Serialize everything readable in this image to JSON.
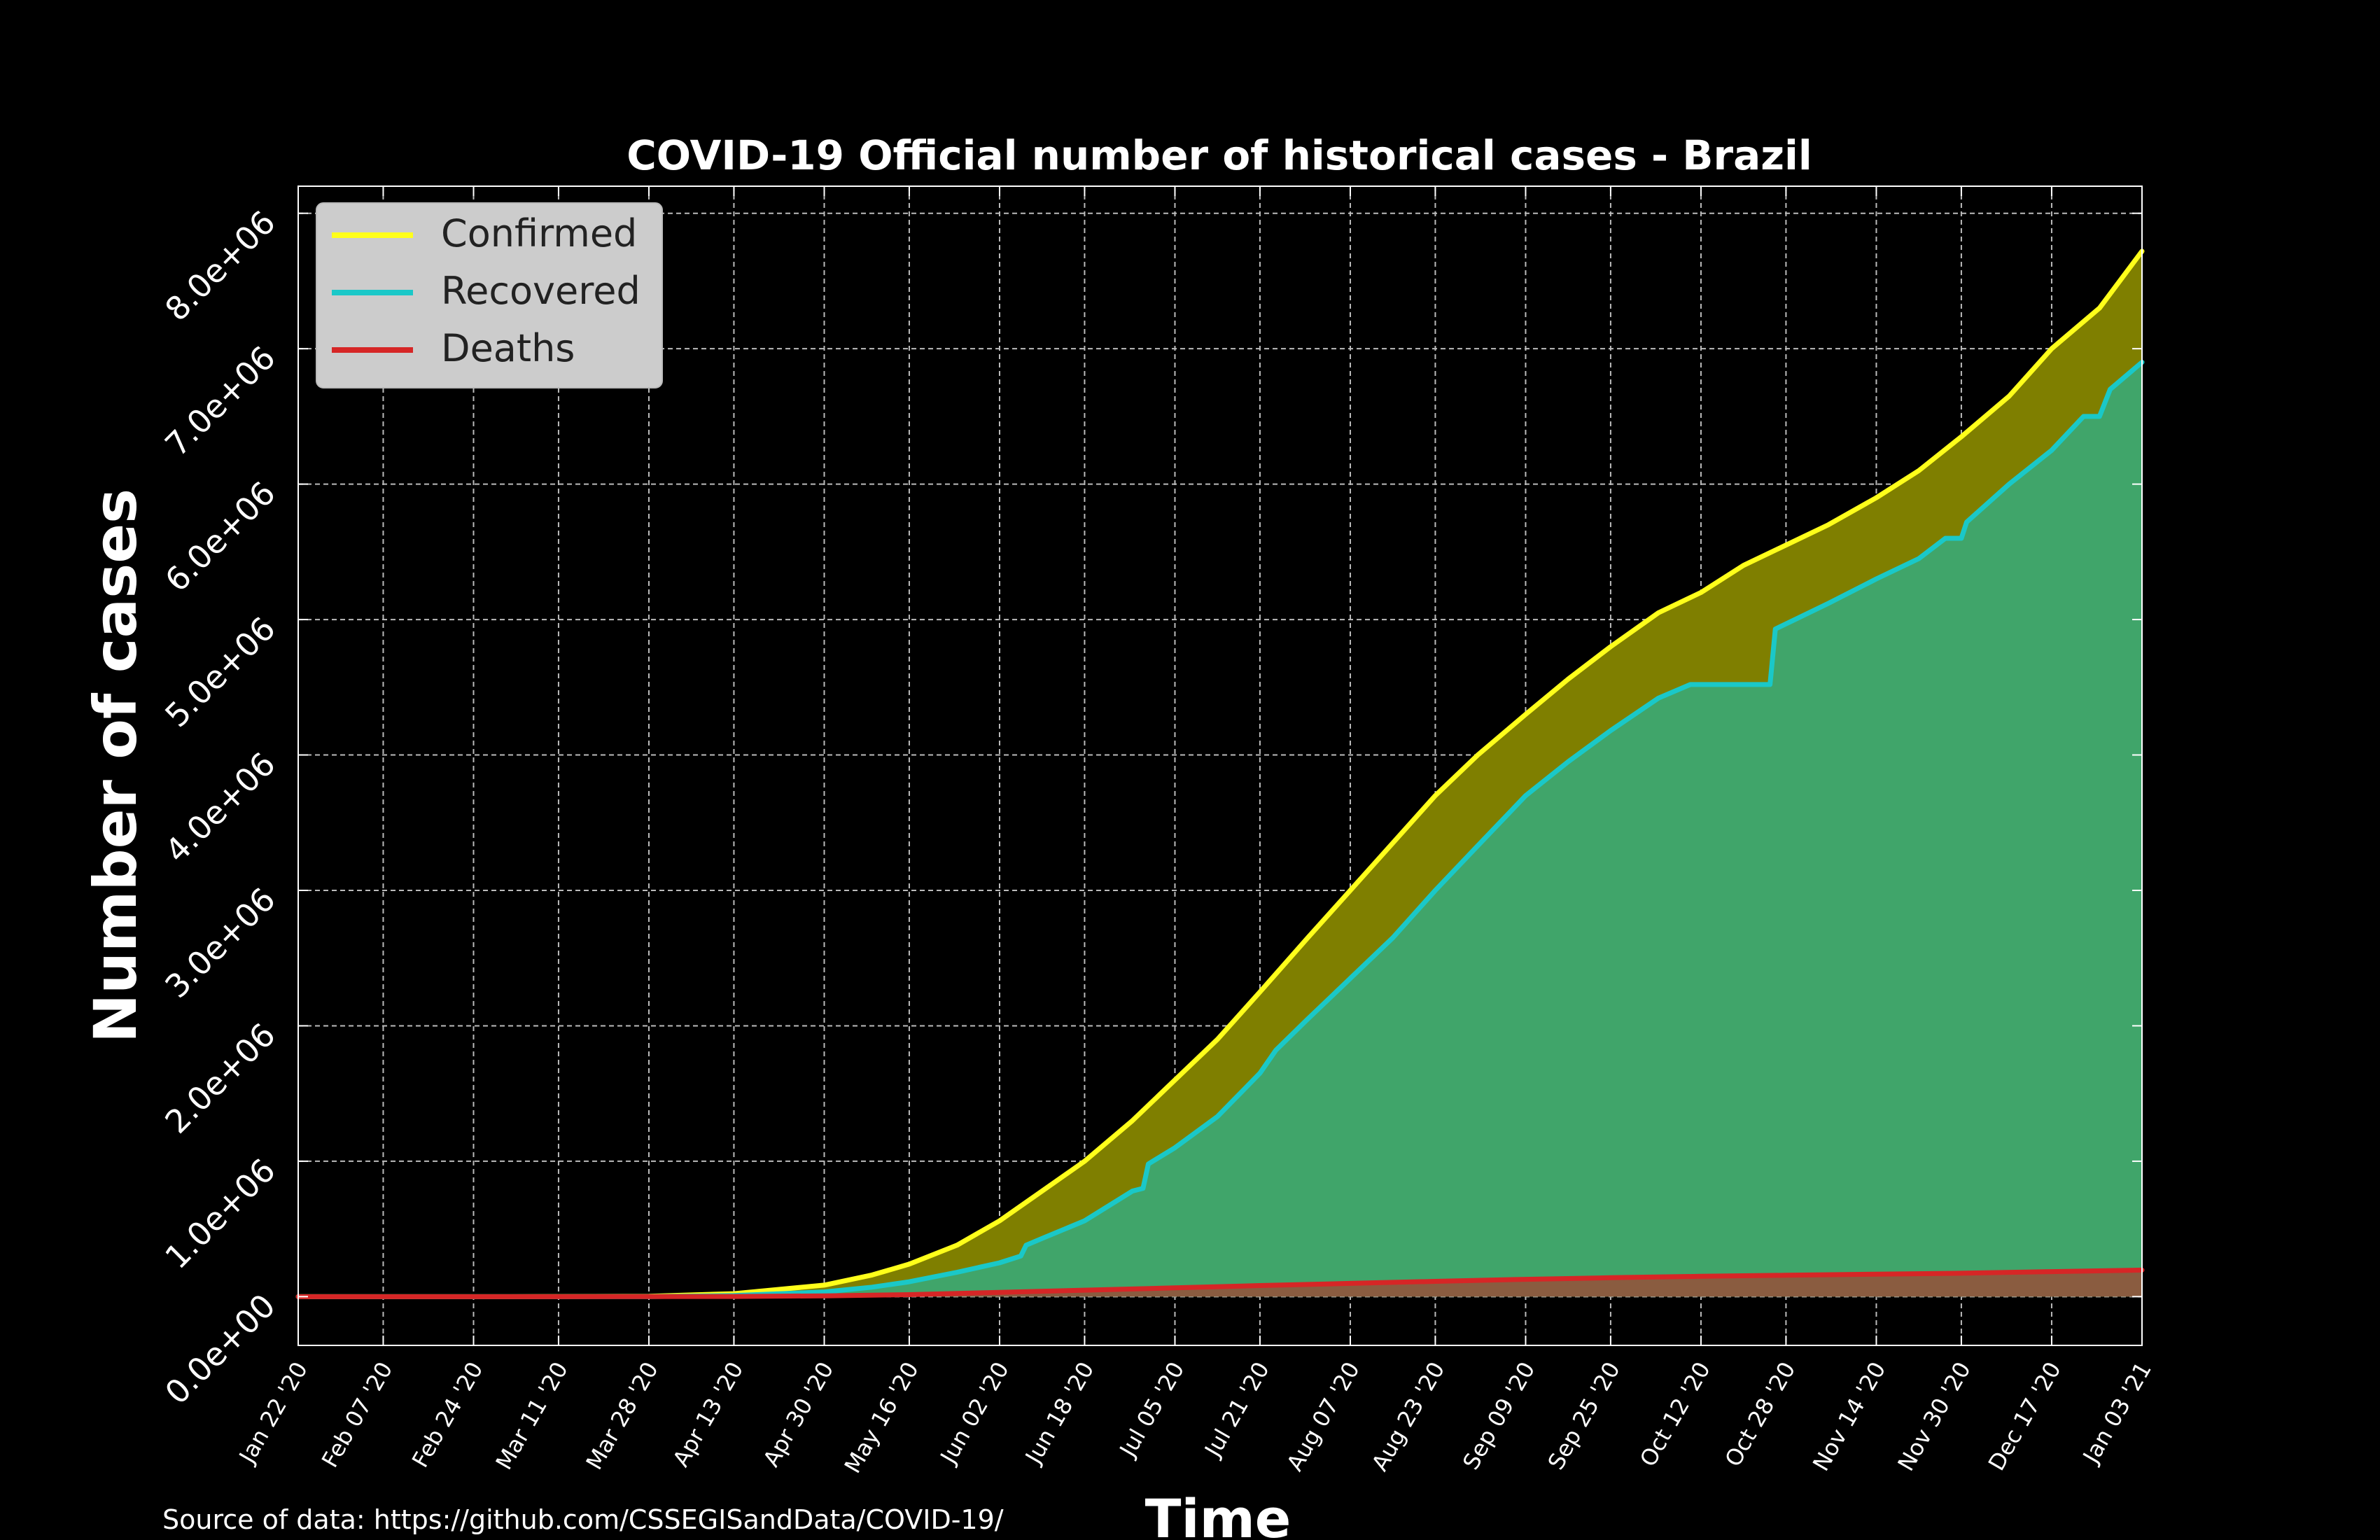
{
  "chart_data": {
    "type": "area",
    "title": "COVID-19 Official number of historical cases - Brazil",
    "xlabel": "Time",
    "ylabel": "Number of cases",
    "source_note": "Source of data: https://github.com/CSSEGISandData/COVID-19/",
    "grid": true,
    "legend_position": "top-left",
    "ylim": [
      -360000,
      8200000
    ],
    "yticks": [
      {
        "value": 0,
        "label": "0.0e+00"
      },
      {
        "value": 1000000,
        "label": "1.0e+06"
      },
      {
        "value": 2000000,
        "label": "2.0e+06"
      },
      {
        "value": 3000000,
        "label": "3.0e+06"
      },
      {
        "value": 4000000,
        "label": "4.0e+06"
      },
      {
        "value": 5000000,
        "label": "5.0e+06"
      },
      {
        "value": 6000000,
        "label": "6.0e+06"
      },
      {
        "value": 7000000,
        "label": "7.0e+06"
      },
      {
        "value": 8000000,
        "label": "8.0e+06"
      }
    ],
    "xlim": [
      0,
      347
    ],
    "xticks": [
      {
        "day": 0,
        "label": "Jan 22 '20"
      },
      {
        "day": 16,
        "label": "Feb 07 '20"
      },
      {
        "day": 33,
        "label": "Feb 24 '20"
      },
      {
        "day": 49,
        "label": "Mar 11 '20"
      },
      {
        "day": 66,
        "label": "Mar 28 '20"
      },
      {
        "day": 82,
        "label": "Apr 13 '20"
      },
      {
        "day": 99,
        "label": "Apr 30 '20"
      },
      {
        "day": 115,
        "label": "May 16 '20"
      },
      {
        "day": 132,
        "label": "Jun 02 '20"
      },
      {
        "day": 148,
        "label": "Jun 18 '20"
      },
      {
        "day": 165,
        "label": "Jul 05 '20"
      },
      {
        "day": 181,
        "label": "Jul 21 '20"
      },
      {
        "day": 198,
        "label": "Aug 07 '20"
      },
      {
        "day": 214,
        "label": "Aug 23 '20"
      },
      {
        "day": 231,
        "label": "Sep 09 '20"
      },
      {
        "day": 247,
        "label": "Sep 25 '20"
      },
      {
        "day": 264,
        "label": "Oct 12 '20"
      },
      {
        "day": 280,
        "label": "Oct 28 '20"
      },
      {
        "day": 297,
        "label": "Nov 14 '20"
      },
      {
        "day": 313,
        "label": "Nov 30 '20"
      },
      {
        "day": 330,
        "label": "Dec 17 '20"
      },
      {
        "day": 347,
        "label": "Jan 03 '21"
      }
    ],
    "series": [
      {
        "name": "Confirmed",
        "color": "#ffff1a",
        "fill": "#7f7f00",
        "points": [
          [
            0,
            0
          ],
          [
            40,
            0
          ],
          [
            66,
            3500
          ],
          [
            82,
            22000
          ],
          [
            99,
            85000
          ],
          [
            108,
            160000
          ],
          [
            115,
            240000
          ],
          [
            124,
            380000
          ],
          [
            132,
            560000
          ],
          [
            140,
            780000
          ],
          [
            148,
            1000000
          ],
          [
            157,
            1300000
          ],
          [
            165,
            1600000
          ],
          [
            173,
            1900000
          ],
          [
            181,
            2250000
          ],
          [
            190,
            2650000
          ],
          [
            198,
            3000000
          ],
          [
            206,
            3350000
          ],
          [
            214,
            3700000
          ],
          [
            222,
            4000000
          ],
          [
            231,
            4300000
          ],
          [
            239,
            4560000
          ],
          [
            247,
            4800000
          ],
          [
            256,
            5050000
          ],
          [
            264,
            5200000
          ],
          [
            272,
            5400000
          ],
          [
            280,
            5550000
          ],
          [
            288,
            5700000
          ],
          [
            297,
            5900000
          ],
          [
            305,
            6100000
          ],
          [
            313,
            6350000
          ],
          [
            322,
            6650000
          ],
          [
            330,
            7000000
          ],
          [
            339,
            7300000
          ],
          [
            347,
            7720000
          ]
        ]
      },
      {
        "name": "Recovered",
        "color": "#1ac8c8",
        "fill": "#40a56a",
        "points": [
          [
            0,
            0
          ],
          [
            66,
            500
          ],
          [
            82,
            8000
          ],
          [
            99,
            35000
          ],
          [
            108,
            70000
          ],
          [
            115,
            110000
          ],
          [
            124,
            180000
          ],
          [
            132,
            250000
          ],
          [
            136,
            300000
          ],
          [
            137,
            380000
          ],
          [
            140,
            430000
          ],
          [
            148,
            560000
          ],
          [
            157,
            780000
          ],
          [
            159,
            800000
          ],
          [
            160,
            980000
          ],
          [
            165,
            1100000
          ],
          [
            173,
            1330000
          ],
          [
            181,
            1650000
          ],
          [
            184,
            1820000
          ],
          [
            190,
            2050000
          ],
          [
            198,
            2350000
          ],
          [
            206,
            2650000
          ],
          [
            214,
            3000000
          ],
          [
            222,
            3330000
          ],
          [
            231,
            3700000
          ],
          [
            239,
            3950000
          ],
          [
            247,
            4180000
          ],
          [
            256,
            4420000
          ],
          [
            262,
            4520000
          ],
          [
            277,
            4520000
          ],
          [
            278,
            4930000
          ],
          [
            288,
            5120000
          ],
          [
            297,
            5300000
          ],
          [
            305,
            5450000
          ],
          [
            310,
            5600000
          ],
          [
            313,
            5600000
          ],
          [
            314,
            5720000
          ],
          [
            322,
            6000000
          ],
          [
            330,
            6250000
          ],
          [
            336,
            6500000
          ],
          [
            339,
            6500000
          ],
          [
            341,
            6700000
          ],
          [
            347,
            6900000
          ]
        ]
      },
      {
        "name": "Deaths",
        "color": "#d62626",
        "fill": "#8a5c40",
        "points": [
          [
            0,
            0
          ],
          [
            66,
            100
          ],
          [
            82,
            1500
          ],
          [
            99,
            6000
          ],
          [
            115,
            15000
          ],
          [
            132,
            32000
          ],
          [
            148,
            48000
          ],
          [
            165,
            65000
          ],
          [
            181,
            82000
          ],
          [
            198,
            98000
          ],
          [
            214,
            113000
          ],
          [
            231,
            128000
          ],
          [
            247,
            140000
          ],
          [
            264,
            150000
          ],
          [
            280,
            158000
          ],
          [
            297,
            166000
          ],
          [
            313,
            173000
          ],
          [
            330,
            185000
          ],
          [
            347,
            196000
          ]
        ]
      }
    ]
  }
}
